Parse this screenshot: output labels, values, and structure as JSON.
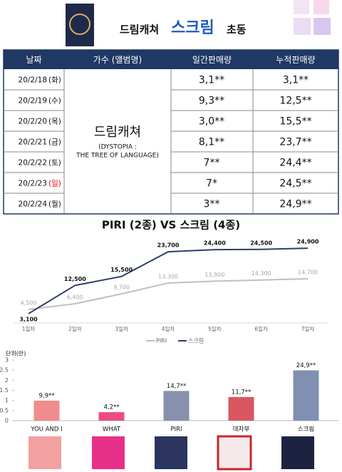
{
  "header": {
    "artist": "드림캐쳐",
    "album": "스크림",
    "suffix": "초동"
  },
  "table": {
    "columns": [
      "날짜",
      "가수 (앨범명)",
      "일간판매량",
      "누적판매량"
    ],
    "artist": "드림캐쳐",
    "album_lines": [
      "(DYSTOPIA :",
      "THE TREE OF LANGUAGE)"
    ],
    "rows": [
      {
        "date": "20/2/18",
        "day": "(화)",
        "day_color": "#111111",
        "daily": "3,1**",
        "total": "3,1**"
      },
      {
        "date": "20/2/19",
        "day": "(수)",
        "day_color": "#111111",
        "daily": "9,3**",
        "total": "12,5**"
      },
      {
        "date": "20/2/20",
        "day": "(목)",
        "day_color": "#111111",
        "daily": "3,0**",
        "total": "15,5**"
      },
      {
        "date": "20/2/21",
        "day": "(금)",
        "day_color": "#111111",
        "daily": "8,1**",
        "total": "23,7**"
      },
      {
        "date": "20/2/22",
        "day": "(토)",
        "day_color": "#111111",
        "daily": "7**",
        "total": "24,4**"
      },
      {
        "date": "20/2/23",
        "day": "(일)",
        "day_color": "#e00000",
        "daily": "7*",
        "total": "24,5**"
      },
      {
        "date": "20/2/24",
        "day": "(월)",
        "day_color": "#111111",
        "daily": "3**",
        "total": "24,9**"
      }
    ]
  },
  "chart_data": [
    {
      "type": "line",
      "title": "PIRI (2종) VS 스크림 (4종)",
      "categories": [
        "1일차",
        "2일차",
        "3일차",
        "4일차",
        "5일차",
        "6일차",
        "7일차"
      ],
      "ylim": [
        0,
        28000
      ],
      "legend": "bottom",
      "series": [
        {
          "name": "PIRI",
          "color": "#bfbfbf",
          "label_color": "#a6a6a6",
          "values": [
            4500,
            6400,
            9700,
            13300,
            13900,
            14300,
            14700
          ],
          "value_labels": [
            "4,500",
            "6,400",
            "9,700",
            "13,300",
            "13,900",
            "14,300",
            "14,700"
          ]
        },
        {
          "name": "스크림",
          "color": "#2e3d6b",
          "label_color": "#111111",
          "values": [
            3100,
            12500,
            15500,
            23700,
            24400,
            24500,
            24900
          ],
          "value_labels": [
            "3,100",
            "12,500",
            "15,500",
            "23,700",
            "24,400",
            "24,500",
            "24,900"
          ]
        }
      ]
    },
    {
      "type": "bar",
      "y_label": "단위(만)",
      "categories": [
        "YOU AND I",
        "WHAT",
        "PIRI",
        "데자부",
        "스크림"
      ],
      "values": [
        0.99,
        0.42,
        1.47,
        1.17,
        2.49
      ],
      "value_labels": [
        "9,9**",
        "4,2**",
        "14,7**",
        "11,7**",
        "24,9**"
      ],
      "colors": [
        "#f08c8c",
        "#ee4a86",
        "#8791ad",
        "#d9575f",
        "#8090b3"
      ],
      "ylim": [
        0,
        3
      ],
      "yticks": [
        0,
        0.5,
        1,
        1.5,
        2,
        2.5,
        3
      ]
    }
  ]
}
